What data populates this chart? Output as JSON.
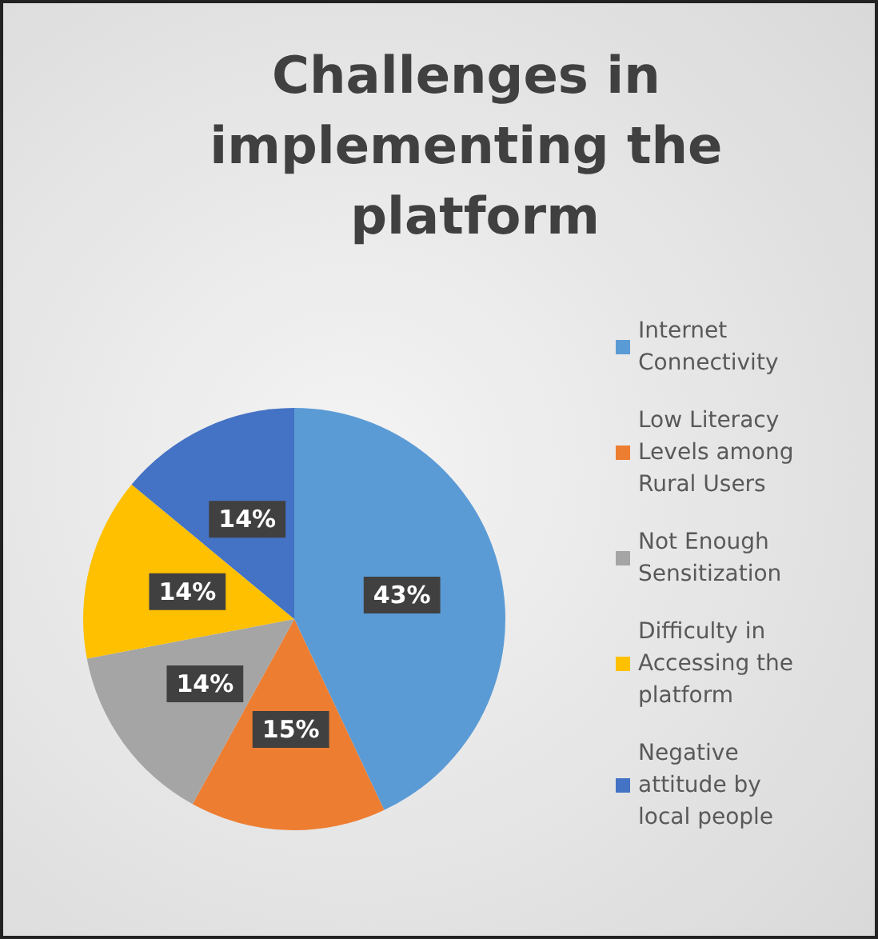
{
  "chart_data": {
    "type": "pie",
    "title": "Challenges in implementing the platform",
    "categories": [
      "Internet Connectivity",
      "Low Literacy Levels among Rural Users",
      "Not Enough Sensitization",
      "Difficulty in Accessing the platform",
      "Negative attitude by local people"
    ],
    "values": [
      43,
      15,
      14,
      14,
      14
    ],
    "value_labels": [
      "43%",
      "15%",
      "14%",
      "14%",
      "14%"
    ],
    "colors": [
      "#5b9bd5",
      "#ed7d31",
      "#a5a5a5",
      "#ffc000",
      "#4472c4"
    ],
    "legend": "right"
  }
}
